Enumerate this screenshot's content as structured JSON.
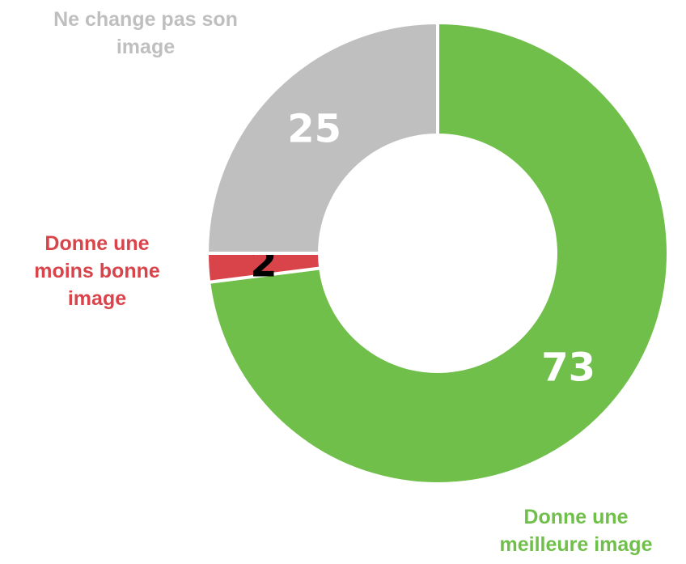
{
  "chart_data": {
    "type": "donut",
    "categories": [
      "Donne une meilleure image",
      "Donne une moins bonne image",
      "Ne change pas son image"
    ],
    "values": [
      73,
      2,
      25
    ],
    "colors": [
      "#70bf4b",
      "#d9434a",
      "#bfbfbf"
    ],
    "value_label_colors": [
      "#ffffff",
      "#000000",
      "#ffffff"
    ]
  }
}
